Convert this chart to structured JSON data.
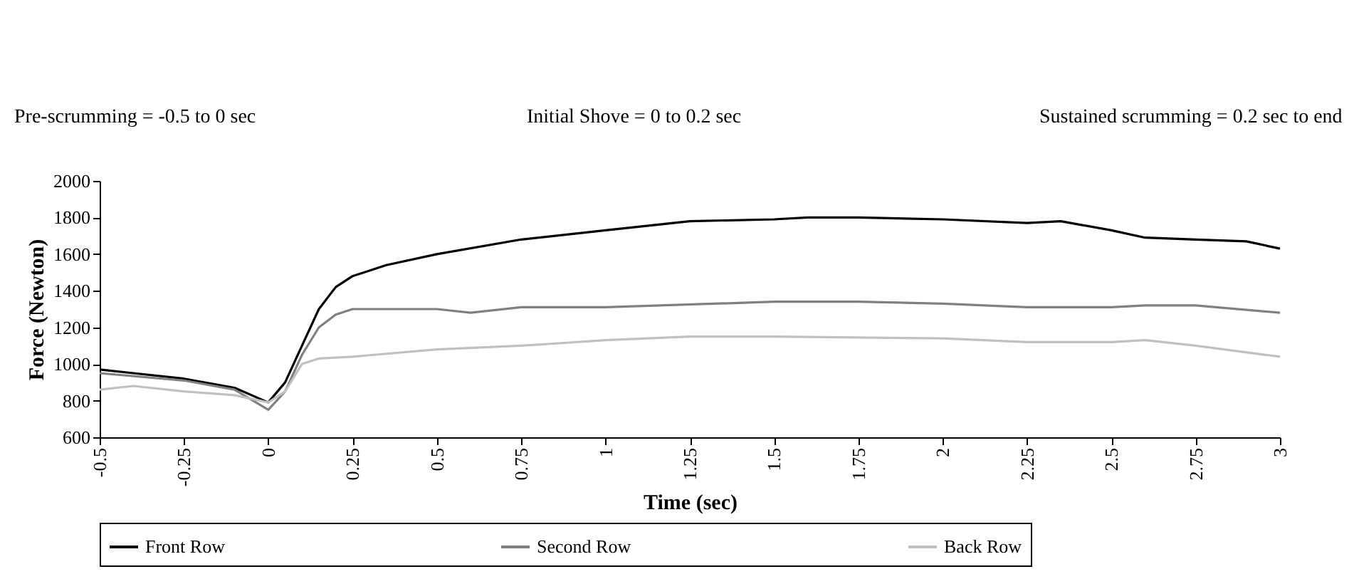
{
  "chart_data": {
    "type": "line",
    "xlabel": "Time (sec)",
    "ylabel": "Force (Newton)",
    "annotations": [
      "Pre-scrumming = -0.5 to 0 sec",
      "Initial Shove = 0 to 0.2 sec",
      "Sustained scrumming = 0.2 sec to end"
    ],
    "xlim": [
      -0.5,
      3
    ],
    "xticks": [
      -0.5,
      -0.25,
      0,
      0.25,
      0.5,
      0.75,
      1,
      1.25,
      1.5,
      1.75,
      2,
      2.25,
      2.5,
      2.75,
      3
    ],
    "ylim": [
      600,
      2000
    ],
    "yticks": [
      600,
      800,
      1000,
      1200,
      1400,
      1600,
      1800,
      2000
    ],
    "grid": false,
    "legend": "bottom",
    "marker": "none",
    "line_style": "solid",
    "series": [
      {
        "name": "Front Row",
        "color": "#000000",
        "x": [
          -0.5,
          -0.4,
          -0.25,
          -0.1,
          0,
          0.05,
          0.1,
          0.15,
          0.2,
          0.25,
          0.35,
          0.5,
          0.75,
          1,
          1.25,
          1.5,
          1.6,
          1.75,
          2,
          2.25,
          2.35,
          2.5,
          2.6,
          2.75,
          2.9,
          3
        ],
        "values": [
          970,
          950,
          920,
          870,
          790,
          900,
          1100,
          1300,
          1420,
          1480,
          1540,
          1600,
          1680,
          1730,
          1780,
          1790,
          1800,
          1800,
          1790,
          1770,
          1780,
          1730,
          1690,
          1680,
          1670,
          1630
        ]
      },
      {
        "name": "Second Row",
        "color": "#808080",
        "x": [
          -0.5,
          -0.25,
          -0.1,
          0,
          0.05,
          0.1,
          0.15,
          0.2,
          0.25,
          0.5,
          0.6,
          0.75,
          1,
          1.5,
          1.75,
          2,
          2.25,
          2.5,
          2.6,
          2.75,
          3
        ],
        "values": [
          950,
          910,
          860,
          750,
          850,
          1050,
          1200,
          1270,
          1300,
          1300,
          1280,
          1310,
          1310,
          1340,
          1340,
          1330,
          1310,
          1310,
          1320,
          1320,
          1280
        ]
      },
      {
        "name": "Back Row",
        "color": "#c0c0c0",
        "x": [
          -0.5,
          -0.4,
          -0.25,
          -0.1,
          0,
          0.05,
          0.1,
          0.15,
          0.25,
          0.5,
          0.75,
          1,
          1.25,
          1.5,
          2,
          2.25,
          2.5,
          2.6,
          2.75,
          3
        ],
        "values": [
          860,
          880,
          850,
          830,
          790,
          850,
          1000,
          1030,
          1040,
          1080,
          1100,
          1130,
          1150,
          1150,
          1140,
          1120,
          1120,
          1130,
          1100,
          1040
        ]
      }
    ]
  }
}
